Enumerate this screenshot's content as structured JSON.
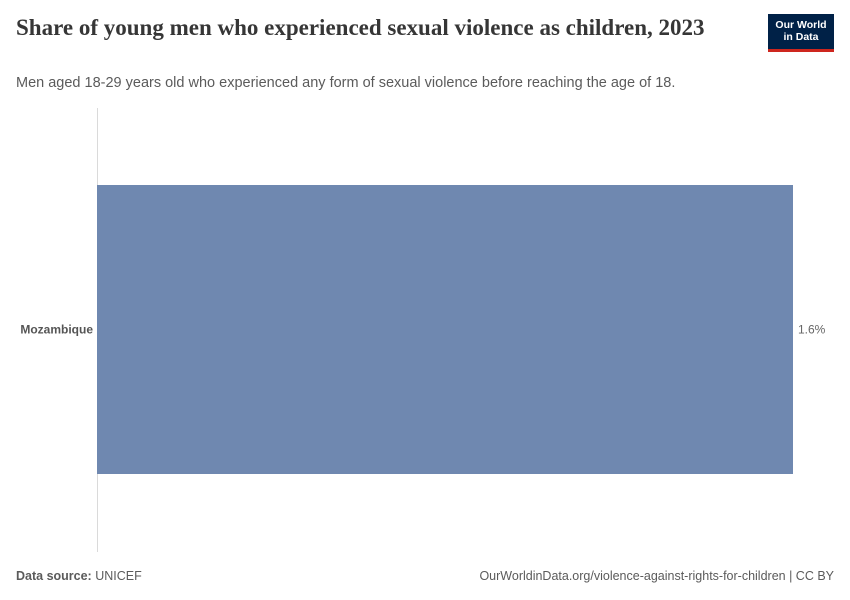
{
  "header": {
    "title": "Share of young men who experienced sexual violence as children, 2023",
    "subtitle": "Men aged 18-29 years old who experienced any form of sexual violence before reaching the age of 18."
  },
  "logo": {
    "line1": "Our World",
    "line2": "in Data"
  },
  "footer": {
    "source_label": "Data source:",
    "source_value": "UNICEF",
    "link": "OurWorldinData.org/violence-against-rights-for-children | CC BY"
  },
  "colors": {
    "bar": "#6f88b0",
    "logo_bg": "#002147",
    "logo_accent": "#ce261e"
  },
  "chart_data": {
    "type": "bar",
    "orientation": "horizontal",
    "categories": [
      "Mozambique"
    ],
    "values": [
      1.6
    ],
    "value_labels": [
      "1.6%"
    ],
    "unit": "%",
    "xlim": [
      0,
      1.6
    ],
    "grid": false
  }
}
